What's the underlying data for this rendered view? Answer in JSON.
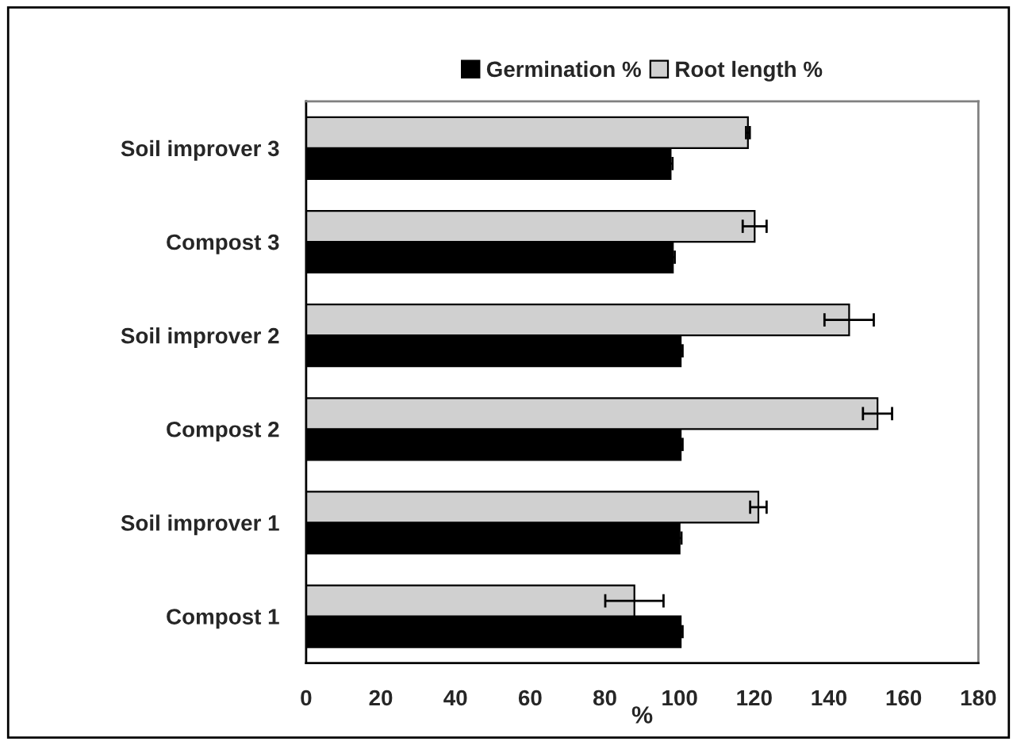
{
  "chart_data": {
    "type": "bar",
    "orientation": "horizontal",
    "xlabel": "%",
    "categories": [
      "Soil improver 3",
      "Compost 3",
      "Soil improver 2",
      "Compost 2",
      "Soil improver 1",
      "Compost 1"
    ],
    "series": [
      {
        "name": "Germination %",
        "color": "#000000",
        "values": [
          97.6,
          98.2,
          100.3,
          100.3,
          100,
          100.3
        ],
        "errors": [
          0.5,
          0.5,
          0.5,
          0.5,
          0.5,
          0.5
        ]
      },
      {
        "name": "Root length %",
        "color": "#d0d0d0",
        "values": [
          118.3,
          120.1,
          145.4,
          153,
          121.1,
          87.9
        ],
        "errors": [
          0.5,
          3.2,
          6.6,
          3.9,
          2.2,
          7.8
        ]
      }
    ],
    "xlim": [
      0,
      180
    ],
    "xticks": [
      0,
      20,
      40,
      60,
      80,
      100,
      120,
      140,
      160,
      180
    ],
    "grid": false,
    "legend": "top"
  }
}
